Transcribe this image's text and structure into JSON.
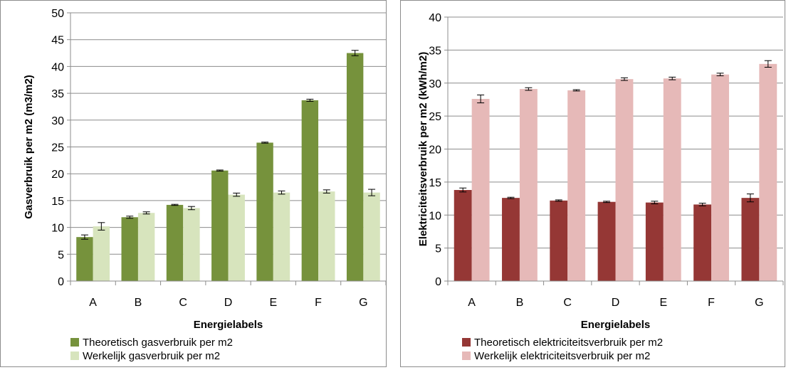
{
  "chart_data": [
    {
      "type": "bar",
      "title": "",
      "xlabel": "Energielabels",
      "ylabel": "Gasverbruik per m2 (m3/m2)",
      "categories": [
        "A",
        "B",
        "C",
        "D",
        "E",
        "F",
        "G"
      ],
      "ylim": [
        0,
        50
      ],
      "yticks": [
        0,
        5,
        10,
        15,
        20,
        25,
        30,
        35,
        40,
        45,
        50
      ],
      "grid": true,
      "legend": "bottom",
      "series": [
        {
          "name": "Theoretisch gasverbruik per m2",
          "color": "#76923c",
          "values": [
            8.2,
            11.9,
            14.2,
            20.6,
            25.8,
            33.7,
            42.5
          ],
          "errors": [
            0.4,
            0.2,
            0.1,
            0.1,
            0.1,
            0.2,
            0.5
          ]
        },
        {
          "name": "Werkelijk gasverbruik per m2",
          "color": "#d7e4bd",
          "values": [
            10.2,
            12.7,
            13.6,
            16.1,
            16.5,
            16.7,
            16.5
          ],
          "errors": [
            0.7,
            0.2,
            0.3,
            0.3,
            0.3,
            0.3,
            0.6
          ]
        }
      ]
    },
    {
      "type": "bar",
      "title": "",
      "xlabel": "Energielabels",
      "ylabel": "Elektriciteitsverbruik per m2 (kWh/m2)",
      "categories": [
        "A",
        "B",
        "C",
        "D",
        "E",
        "F",
        "G"
      ],
      "ylim": [
        0,
        40
      ],
      "yticks": [
        0,
        5,
        10,
        15,
        20,
        25,
        30,
        35,
        40
      ],
      "grid": true,
      "legend": "bottom",
      "series": [
        {
          "name": "Theoretisch elektriciteitsverbruik per m2",
          "color": "#953735",
          "values": [
            13.8,
            12.6,
            12.2,
            12.0,
            11.9,
            11.6,
            12.6
          ],
          "errors": [
            0.3,
            0.1,
            0.1,
            0.1,
            0.2,
            0.2,
            0.6
          ]
        },
        {
          "name": "Werkelijk elektriciteitsverbruik per m2",
          "color": "#e6b9b8",
          "values": [
            27.6,
            29.1,
            28.9,
            30.6,
            30.7,
            31.3,
            32.9
          ],
          "errors": [
            0.6,
            0.2,
            0.1,
            0.2,
            0.2,
            0.2,
            0.5
          ]
        }
      ]
    }
  ]
}
